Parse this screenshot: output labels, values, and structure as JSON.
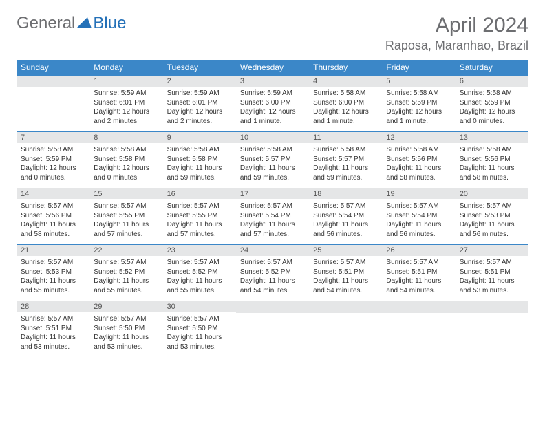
{
  "logo": {
    "general": "General",
    "blue": "Blue"
  },
  "title": "April 2024",
  "location": "Raposa, Maranhao, Brazil",
  "colors": {
    "header_bg": "#3b87c8",
    "header_fg": "#ffffff",
    "daynum_bg": "#e5e6e7",
    "border": "#3b87c8",
    "logo_gray": "#6d6e71",
    "logo_blue": "#2571b8"
  },
  "weekdays": [
    "Sunday",
    "Monday",
    "Tuesday",
    "Wednesday",
    "Thursday",
    "Friday",
    "Saturday"
  ],
  "weeks": [
    [
      null,
      {
        "n": "1",
        "sr": "Sunrise: 5:59 AM",
        "ss": "Sunset: 6:01 PM",
        "dl": "Daylight: 12 hours and 2 minutes."
      },
      {
        "n": "2",
        "sr": "Sunrise: 5:59 AM",
        "ss": "Sunset: 6:01 PM",
        "dl": "Daylight: 12 hours and 2 minutes."
      },
      {
        "n": "3",
        "sr": "Sunrise: 5:59 AM",
        "ss": "Sunset: 6:00 PM",
        "dl": "Daylight: 12 hours and 1 minute."
      },
      {
        "n": "4",
        "sr": "Sunrise: 5:58 AM",
        "ss": "Sunset: 6:00 PM",
        "dl": "Daylight: 12 hours and 1 minute."
      },
      {
        "n": "5",
        "sr": "Sunrise: 5:58 AM",
        "ss": "Sunset: 5:59 PM",
        "dl": "Daylight: 12 hours and 1 minute."
      },
      {
        "n": "6",
        "sr": "Sunrise: 5:58 AM",
        "ss": "Sunset: 5:59 PM",
        "dl": "Daylight: 12 hours and 0 minutes."
      }
    ],
    [
      {
        "n": "7",
        "sr": "Sunrise: 5:58 AM",
        "ss": "Sunset: 5:59 PM",
        "dl": "Daylight: 12 hours and 0 minutes."
      },
      {
        "n": "8",
        "sr": "Sunrise: 5:58 AM",
        "ss": "Sunset: 5:58 PM",
        "dl": "Daylight: 12 hours and 0 minutes."
      },
      {
        "n": "9",
        "sr": "Sunrise: 5:58 AM",
        "ss": "Sunset: 5:58 PM",
        "dl": "Daylight: 11 hours and 59 minutes."
      },
      {
        "n": "10",
        "sr": "Sunrise: 5:58 AM",
        "ss": "Sunset: 5:57 PM",
        "dl": "Daylight: 11 hours and 59 minutes."
      },
      {
        "n": "11",
        "sr": "Sunrise: 5:58 AM",
        "ss": "Sunset: 5:57 PM",
        "dl": "Daylight: 11 hours and 59 minutes."
      },
      {
        "n": "12",
        "sr": "Sunrise: 5:58 AM",
        "ss": "Sunset: 5:56 PM",
        "dl": "Daylight: 11 hours and 58 minutes."
      },
      {
        "n": "13",
        "sr": "Sunrise: 5:58 AM",
        "ss": "Sunset: 5:56 PM",
        "dl": "Daylight: 11 hours and 58 minutes."
      }
    ],
    [
      {
        "n": "14",
        "sr": "Sunrise: 5:57 AM",
        "ss": "Sunset: 5:56 PM",
        "dl": "Daylight: 11 hours and 58 minutes."
      },
      {
        "n": "15",
        "sr": "Sunrise: 5:57 AM",
        "ss": "Sunset: 5:55 PM",
        "dl": "Daylight: 11 hours and 57 minutes."
      },
      {
        "n": "16",
        "sr": "Sunrise: 5:57 AM",
        "ss": "Sunset: 5:55 PM",
        "dl": "Daylight: 11 hours and 57 minutes."
      },
      {
        "n": "17",
        "sr": "Sunrise: 5:57 AM",
        "ss": "Sunset: 5:54 PM",
        "dl": "Daylight: 11 hours and 57 minutes."
      },
      {
        "n": "18",
        "sr": "Sunrise: 5:57 AM",
        "ss": "Sunset: 5:54 PM",
        "dl": "Daylight: 11 hours and 56 minutes."
      },
      {
        "n": "19",
        "sr": "Sunrise: 5:57 AM",
        "ss": "Sunset: 5:54 PM",
        "dl": "Daylight: 11 hours and 56 minutes."
      },
      {
        "n": "20",
        "sr": "Sunrise: 5:57 AM",
        "ss": "Sunset: 5:53 PM",
        "dl": "Daylight: 11 hours and 56 minutes."
      }
    ],
    [
      {
        "n": "21",
        "sr": "Sunrise: 5:57 AM",
        "ss": "Sunset: 5:53 PM",
        "dl": "Daylight: 11 hours and 55 minutes."
      },
      {
        "n": "22",
        "sr": "Sunrise: 5:57 AM",
        "ss": "Sunset: 5:52 PM",
        "dl": "Daylight: 11 hours and 55 minutes."
      },
      {
        "n": "23",
        "sr": "Sunrise: 5:57 AM",
        "ss": "Sunset: 5:52 PM",
        "dl": "Daylight: 11 hours and 55 minutes."
      },
      {
        "n": "24",
        "sr": "Sunrise: 5:57 AM",
        "ss": "Sunset: 5:52 PM",
        "dl": "Daylight: 11 hours and 54 minutes."
      },
      {
        "n": "25",
        "sr": "Sunrise: 5:57 AM",
        "ss": "Sunset: 5:51 PM",
        "dl": "Daylight: 11 hours and 54 minutes."
      },
      {
        "n": "26",
        "sr": "Sunrise: 5:57 AM",
        "ss": "Sunset: 5:51 PM",
        "dl": "Daylight: 11 hours and 54 minutes."
      },
      {
        "n": "27",
        "sr": "Sunrise: 5:57 AM",
        "ss": "Sunset: 5:51 PM",
        "dl": "Daylight: 11 hours and 53 minutes."
      }
    ],
    [
      {
        "n": "28",
        "sr": "Sunrise: 5:57 AM",
        "ss": "Sunset: 5:51 PM",
        "dl": "Daylight: 11 hours and 53 minutes."
      },
      {
        "n": "29",
        "sr": "Sunrise: 5:57 AM",
        "ss": "Sunset: 5:50 PM",
        "dl": "Daylight: 11 hours and 53 minutes."
      },
      {
        "n": "30",
        "sr": "Sunrise: 5:57 AM",
        "ss": "Sunset: 5:50 PM",
        "dl": "Daylight: 11 hours and 53 minutes."
      },
      null,
      null,
      null,
      null
    ]
  ]
}
